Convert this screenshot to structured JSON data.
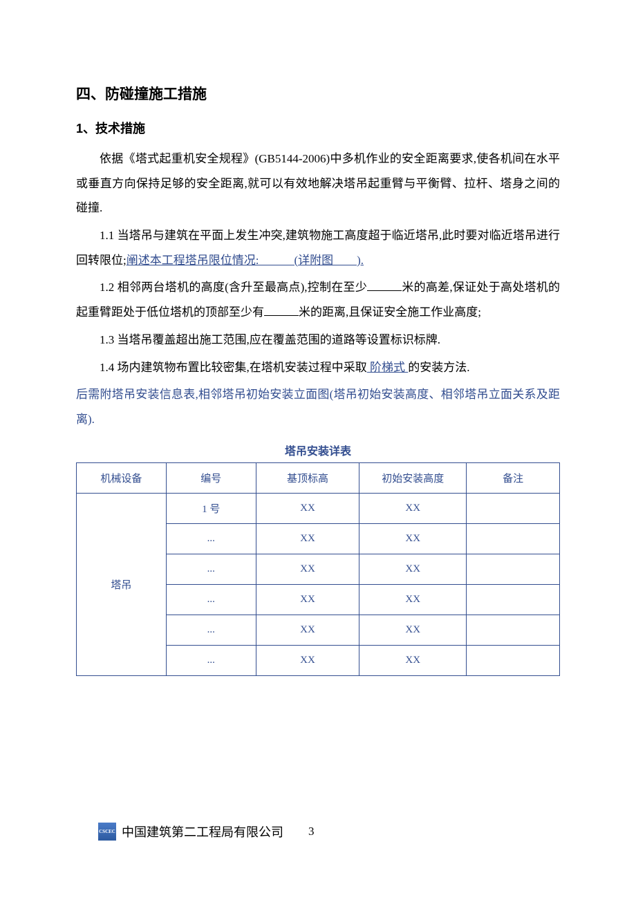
{
  "heading_main": "四、防碰撞施工措施",
  "heading_sub": "1、技术措施",
  "para1_a": "依据《塔式起重机安全规程》(GB5144-2006)中多机作业的安全距离要求,使各机间在水平或垂直方向保持足够的安全距离,就可以有效地解决塔吊起重臂与平衡臂、拉杆、塔身之间的碰撞.",
  "para2_a": "1.1 当塔吊与建筑在平面上发生冲突,建筑物施工高度超于临近塔吊,此时要对临近塔吊进行回转限位;",
  "para2_link": "阐述本工程塔吊限位情况:   (详附图  ).",
  "para3_a": "1.2 相邻两台塔机的高度(含升至最高点),控制在至少",
  "para3_b": "米的高差,保证处于高处塔机的起重臂距处于低位塔机的顶部至少有",
  "para3_c": "米的距离,且保证安全施工作业高度;",
  "para4": "1.3 当塔吊覆盖超出施工范围,应在覆盖范围的道路等设置标识标牌.",
  "para5_a": "1.4 场内建筑物布置比较密集,在塔机安装过程中采取",
  "para5_link": " 阶梯式 ",
  "para5_b": "的安装方法.",
  "para6": "后需附塔吊安装信息表,相邻塔吊初始安装立面图(塔吊初始安装高度、相邻塔吊立面关系及距离).",
  "table_title": "塔吊安装详表",
  "table": {
    "headers": [
      "机械设备",
      "编号",
      "基顶标高",
      "初始安装高度",
      "备注"
    ],
    "merged_label": "塔吊",
    "rows": [
      [
        "1 号",
        "XX",
        "XX",
        ""
      ],
      [
        "...",
        "XX",
        "XX",
        ""
      ],
      [
        "...",
        "XX",
        "XX",
        ""
      ],
      [
        "...",
        "XX",
        "XX",
        ""
      ],
      [
        "...",
        "XX",
        "XX",
        ""
      ],
      [
        "...",
        "XX",
        "XX",
        ""
      ]
    ],
    "col_widths": [
      "130px",
      "130px",
      "150px",
      "155px",
      "135px"
    ]
  },
  "footer": {
    "company": "中国建筑第二工程局有限公司",
    "page": "3",
    "logo_text": "CSCEC"
  },
  "colors": {
    "text": "#000000",
    "highlight": "#324d8f",
    "table_border": "#324d8f",
    "background": "#ffffff"
  }
}
